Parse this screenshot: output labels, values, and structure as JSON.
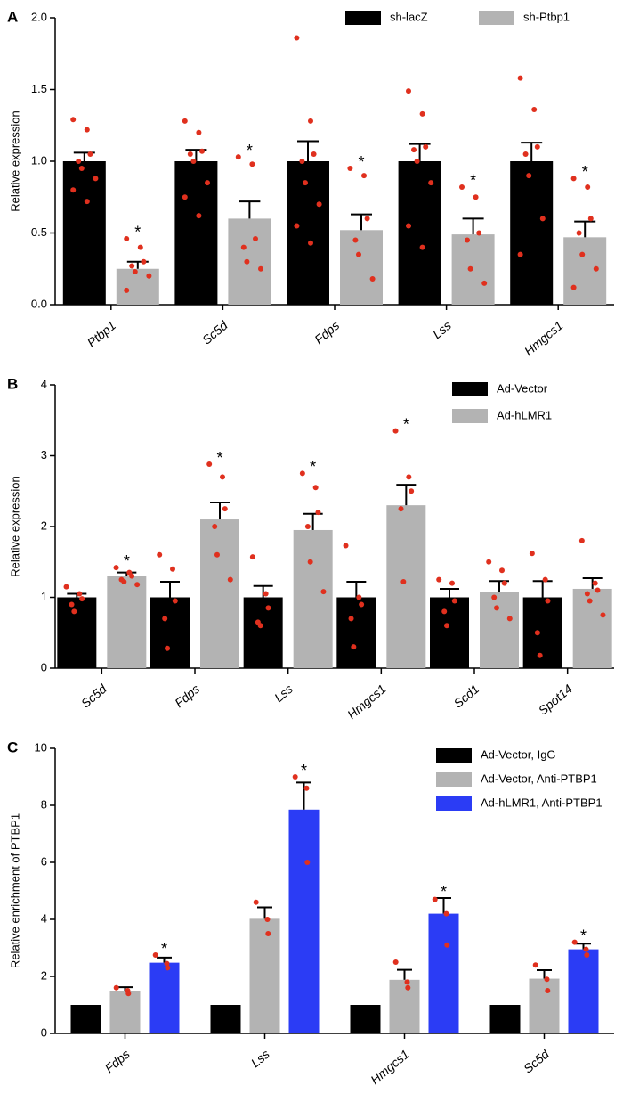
{
  "chart_data": [
    {
      "type": "bar",
      "label": "A",
      "ylabel": "Relative expression",
      "categories": [
        "Ptbp1",
        "Sc5d",
        "Fdps",
        "Lss",
        "Hmgcs1"
      ],
      "series": [
        {
          "name": "sh-lacZ",
          "color": "#000000",
          "values": [
            1,
            1,
            1,
            1,
            1
          ],
          "errors": [
            0.06,
            0.08,
            0.14,
            0.12,
            0.13
          ],
          "points": [
            [
              1.29,
              1.22,
              1.05,
              1.0,
              0.95,
              0.88,
              0.8,
              0.72
            ],
            [
              1.28,
              1.2,
              1.07,
              1.05,
              1.0,
              0.85,
              0.75,
              0.62
            ],
            [
              1.86,
              1.28,
              1.05,
              1.0,
              0.85,
              0.7,
              0.55,
              0.43
            ],
            [
              1.49,
              1.33,
              1.1,
              1.08,
              1.0,
              0.85,
              0.55,
              0.4
            ],
            [
              1.58,
              1.36,
              1.1,
              1.05,
              0.9,
              0.6,
              0.35
            ]
          ],
          "significance": [
            null,
            null,
            null,
            null,
            null
          ]
        },
        {
          "name": "sh-Ptbp1",
          "color": "#b3b3b3",
          "values": [
            0.25,
            0.6,
            0.52,
            0.49,
            0.47
          ],
          "errors": [
            0.05,
            0.12,
            0.11,
            0.11,
            0.11
          ],
          "points": [
            [
              0.46,
              0.4,
              0.3,
              0.27,
              0.23,
              0.2,
              0.1
            ],
            [
              1.03,
              0.98,
              0.46,
              0.4,
              0.3,
              0.25
            ],
            [
              0.95,
              0.9,
              0.6,
              0.45,
              0.35,
              0.18
            ],
            [
              0.82,
              0.75,
              0.5,
              0.45,
              0.25,
              0.15
            ],
            [
              0.88,
              0.82,
              0.6,
              0.5,
              0.35,
              0.25,
              0.12
            ]
          ],
          "significance": [
            "*",
            "*",
            "*",
            "*",
            "*"
          ]
        }
      ],
      "ylim": [
        0,
        2
      ],
      "yticks": [
        {
          "value": 0,
          "label": "0.0"
        },
        0.5,
        {
          "value": 1,
          "label": "1.0"
        },
        1.5,
        {
          "value": 2,
          "label": "2.0"
        }
      ]
    },
    {
      "type": "bar",
      "label": "B",
      "ylabel": "Relative expression",
      "categories": [
        "Sc5d",
        "Fdps",
        "Lss",
        "Hmgcs1",
        "Scd1",
        "Spot14"
      ],
      "series": [
        {
          "name": "Ad-Vector",
          "color": "#000000",
          "values": [
            1,
            1,
            1,
            1,
            1,
            1
          ],
          "errors": [
            0.05,
            0.22,
            0.16,
            0.22,
            0.12,
            0.23
          ],
          "points": [
            [
              1.15,
              1.05,
              0.98,
              0.9,
              0.8
            ],
            [
              1.6,
              1.4,
              0.95,
              0.7,
              0.28
            ],
            [
              1.57,
              1.05,
              0.85,
              0.65,
              0.6
            ],
            [
              1.73,
              1.0,
              0.9,
              0.7,
              0.3
            ],
            [
              1.25,
              1.2,
              0.95,
              0.8,
              0.6
            ],
            [
              1.62,
              1.25,
              0.95,
              0.5,
              0.18
            ]
          ],
          "significance": [
            null,
            null,
            null,
            null,
            null,
            null
          ]
        },
        {
          "name": "Ad-hLMR1",
          "color": "#b3b3b3",
          "values": [
            1.3,
            2.1,
            1.95,
            2.3,
            1.08,
            1.12
          ],
          "errors": [
            0.05,
            0.24,
            0.23,
            0.29,
            0.15,
            0.15
          ],
          "points": [
            [
              1.42,
              1.35,
              1.3,
              1.25,
              1.22,
              1.18
            ],
            [
              2.88,
              2.7,
              2.25,
              2.0,
              1.6,
              1.25
            ],
            [
              2.75,
              2.55,
              2.2,
              2.0,
              1.5,
              1.08
            ],
            [
              3.35,
              2.7,
              2.5,
              2.25,
              1.22
            ],
            [
              1.5,
              1.38,
              1.2,
              1.0,
              0.85,
              0.7
            ],
            [
              1.8,
              1.2,
              1.1,
              1.05,
              0.95,
              0.75
            ]
          ],
          "significance": [
            "*",
            "*",
            "*",
            "*",
            null,
            null
          ]
        }
      ],
      "ylim": [
        0,
        4
      ],
      "yticks": [
        0,
        1,
        2,
        3,
        4
      ]
    },
    {
      "type": "bar",
      "label": "C",
      "ylabel": "Relative enrichment of PTBP1",
      "categories": [
        "Fdps",
        "Lss",
        "Hmgcs1",
        "Sc5d"
      ],
      "series": [
        {
          "name": "Ad-Vector, IgG",
          "color": "#000000",
          "values": [
            1,
            1,
            1,
            1
          ]
        },
        {
          "name": "Ad-Vector, Anti-PTBP1",
          "color": "#b3b3b3",
          "values": [
            1.5,
            4.02,
            1.88,
            1.92
          ],
          "errors": [
            0.12,
            0.4,
            0.35,
            0.3
          ],
          "points": [
            [
              1.6,
              1.5,
              1.4
            ],
            [
              4.6,
              4.0,
              3.5
            ],
            [
              2.5,
              1.8,
              1.6
            ],
            [
              2.4,
              1.9,
              1.5
            ]
          ],
          "significance": [
            null,
            null,
            null,
            null
          ]
        },
        {
          "name": "Ad-hLMR1, Anti-PTBP1",
          "color": "#2b3cf5",
          "values": [
            2.48,
            7.85,
            4.2,
            2.95
          ],
          "errors": [
            0.18,
            0.95,
            0.55,
            0.2
          ],
          "points": [
            [
              2.75,
              2.45,
              2.3
            ],
            [
              9.0,
              8.6,
              6.0
            ],
            [
              4.7,
              4.2,
              3.1
            ],
            [
              3.2,
              2.95,
              2.75
            ]
          ],
          "significance": [
            "*",
            "*",
            "*",
            "*"
          ]
        }
      ],
      "ylim": [
        0,
        10
      ],
      "yticks": [
        0,
        2,
        4,
        6,
        8,
        10
      ]
    }
  ]
}
